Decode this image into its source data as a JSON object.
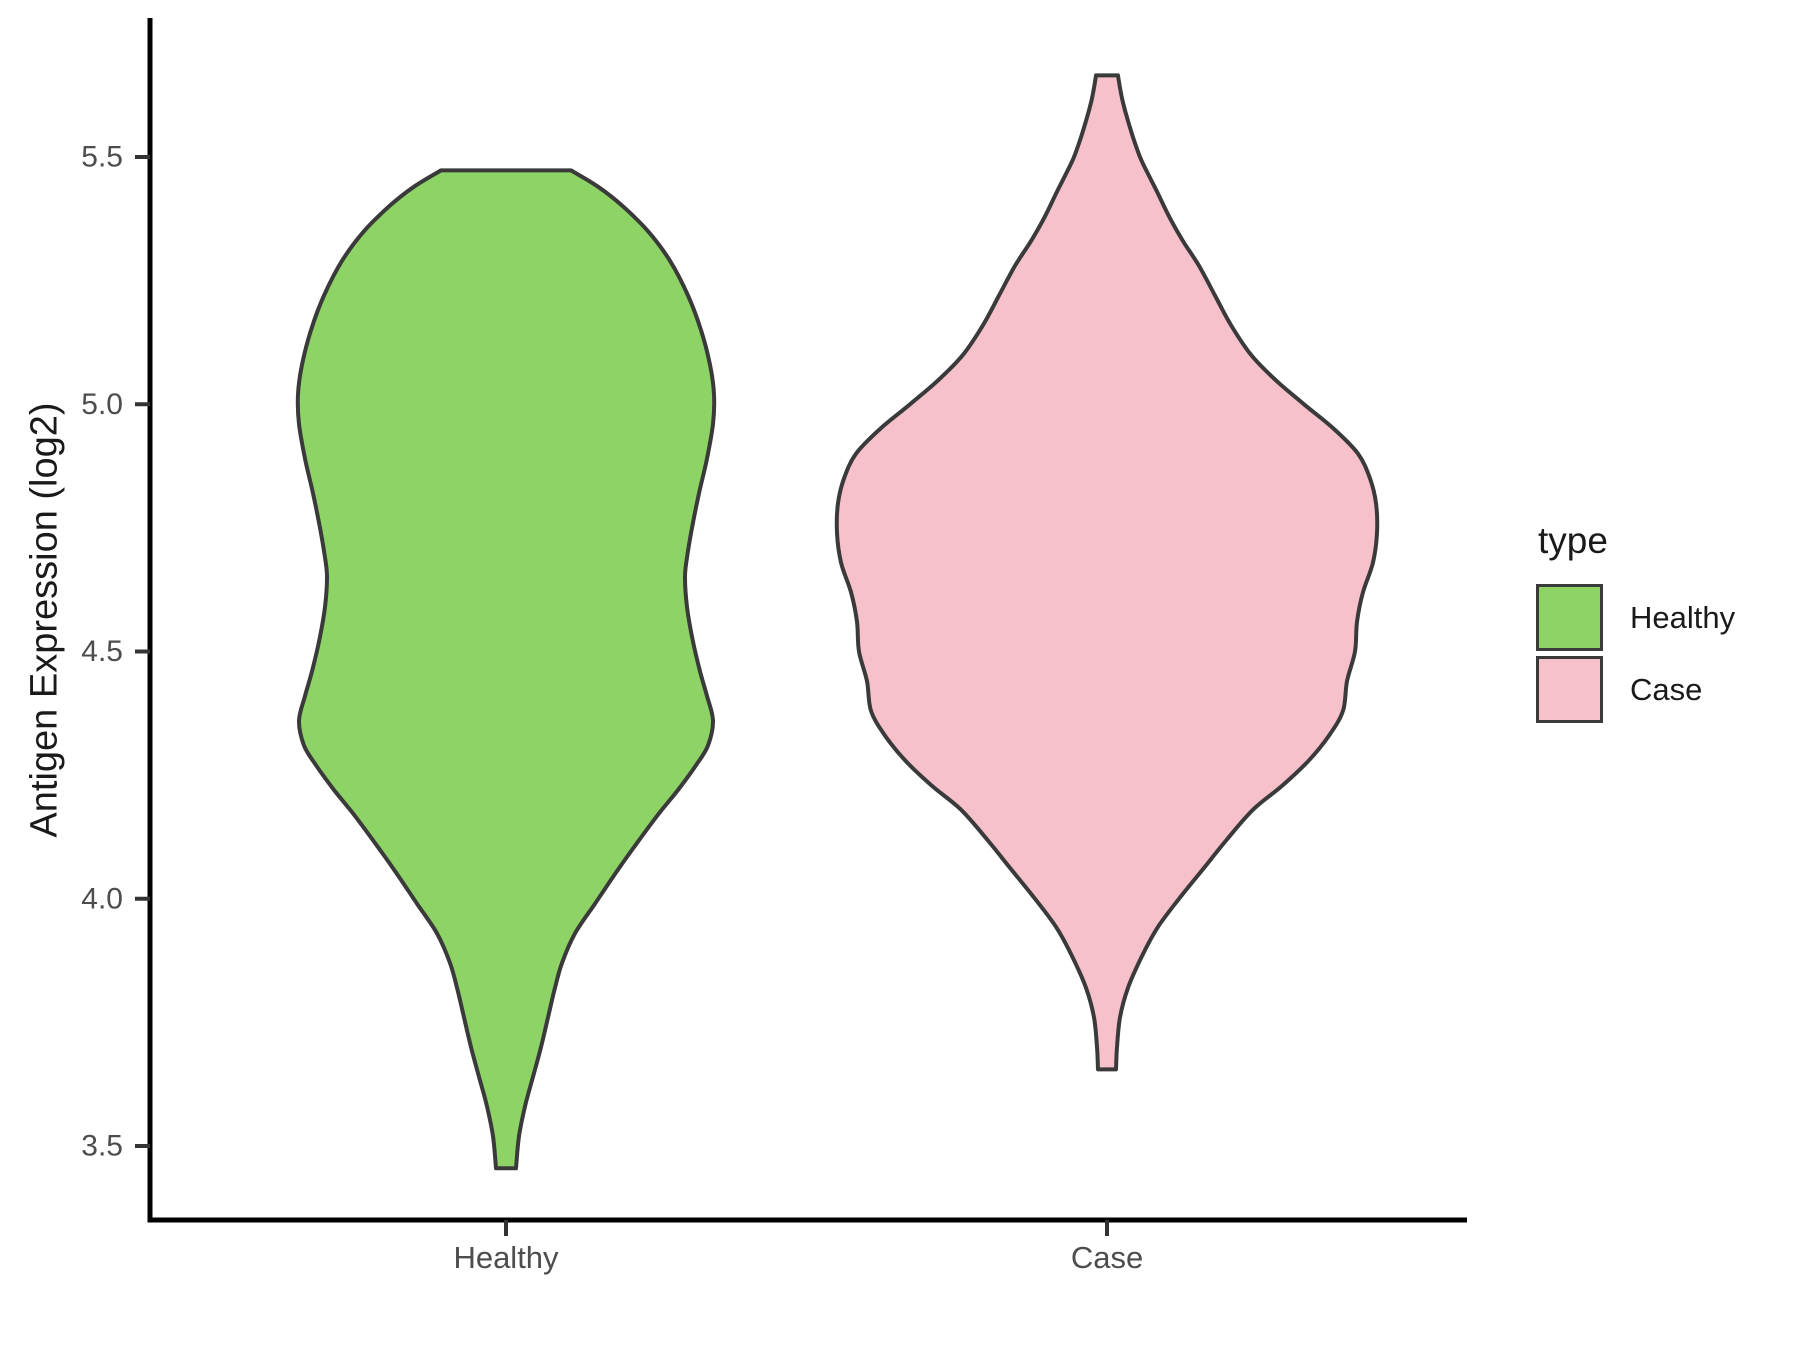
{
  "chart_data": {
    "type": "violin",
    "title": "",
    "xlabel": "",
    "ylabel": "Antigen Expression (log2)",
    "categories": [
      "Healthy",
      "Case"
    ],
    "yticks": [
      3.5,
      4.0,
      4.5,
      5.0,
      5.5
    ],
    "ytick_labels": [
      "3.5",
      "4.0",
      "4.5",
      "5.0",
      "5.5"
    ],
    "ylim": [
      3.35,
      5.78
    ],
    "grid": "off",
    "legend": {
      "title": "type",
      "position": "right",
      "entries": [
        {
          "label": "Healthy",
          "color": "#8dd366"
        },
        {
          "label": "Case",
          "color": "#f7c1cc"
        }
      ]
    },
    "style": {
      "outline": "#3a3a3a",
      "axis_line": "#000000",
      "tick_color": "#333333",
      "tick_label_color": "#4d4d4d",
      "text_color": "#1a1a1a",
      "background": "#ffffff"
    },
    "profile_units": [
      "expression_log2_value",
      "halfwidth_px"
    ],
    "series": [
      {
        "name": "Healthy",
        "fill": "#8dd366",
        "min": 3.455,
        "max": 5.473,
        "profile": [
          [
            5.473,
            65
          ],
          [
            5.44,
            92
          ],
          [
            5.4,
            117
          ],
          [
            5.35,
            142
          ],
          [
            5.29,
            164
          ],
          [
            5.22,
            182
          ],
          [
            5.15,
            195
          ],
          [
            5.08,
            204
          ],
          [
            5.02,
            208
          ],
          [
            4.96,
            207
          ],
          [
            4.89,
            201
          ],
          [
            4.82,
            193
          ],
          [
            4.75,
            186
          ],
          [
            4.69,
            181
          ],
          [
            4.65,
            179
          ],
          [
            4.59,
            181
          ],
          [
            4.52,
            187
          ],
          [
            4.46,
            194
          ],
          [
            4.41,
            201
          ],
          [
            4.36,
            207
          ],
          [
            4.31,
            202
          ],
          [
            4.27,
            190
          ],
          [
            4.22,
            172
          ],
          [
            4.17,
            152
          ],
          [
            4.11,
            130
          ],
          [
            4.05,
            109
          ],
          [
            3.99,
            89
          ],
          [
            3.93,
            69
          ],
          [
            3.87,
            56
          ],
          [
            3.82,
            49
          ],
          [
            3.76,
            42
          ],
          [
            3.7,
            35
          ],
          [
            3.64,
            27
          ],
          [
            3.58,
            19
          ],
          [
            3.52,
            13
          ],
          [
            3.455,
            10
          ]
        ]
      },
      {
        "name": "Case",
        "fill": "#f7c1cc",
        "min": 3.655,
        "max": 5.665,
        "profile": [
          [
            5.665,
            11
          ],
          [
            5.64,
            13
          ],
          [
            5.61,
            16
          ],
          [
            5.58,
            20
          ],
          [
            5.54,
            26
          ],
          [
            5.5,
            33
          ],
          [
            5.47,
            40
          ],
          [
            5.43,
            50
          ],
          [
            5.38,
            62
          ],
          [
            5.33,
            76
          ],
          [
            5.28,
            92
          ],
          [
            5.22,
            108
          ],
          [
            5.16,
            124
          ],
          [
            5.1,
            144
          ],
          [
            5.05,
            168
          ],
          [
            5.0,
            197
          ],
          [
            4.95,
            227
          ],
          [
            4.9,
            251
          ],
          [
            4.85,
            263
          ],
          [
            4.8,
            269
          ],
          [
            4.74,
            270
          ],
          [
            4.68,
            266
          ],
          [
            4.62,
            256
          ],
          [
            4.56,
            250
          ],
          [
            4.5,
            248
          ],
          [
            4.44,
            240
          ],
          [
            4.38,
            236
          ],
          [
            4.33,
            222
          ],
          [
            4.28,
            202
          ],
          [
            4.23,
            176
          ],
          [
            4.18,
            146
          ],
          [
            4.12,
            120
          ],
          [
            4.06,
            96
          ],
          [
            4.0,
            72
          ],
          [
            3.94,
            50
          ],
          [
            3.88,
            34
          ],
          [
            3.82,
            21
          ],
          [
            3.76,
            13
          ],
          [
            3.7,
            10
          ],
          [
            3.655,
            9
          ]
        ]
      }
    ]
  }
}
